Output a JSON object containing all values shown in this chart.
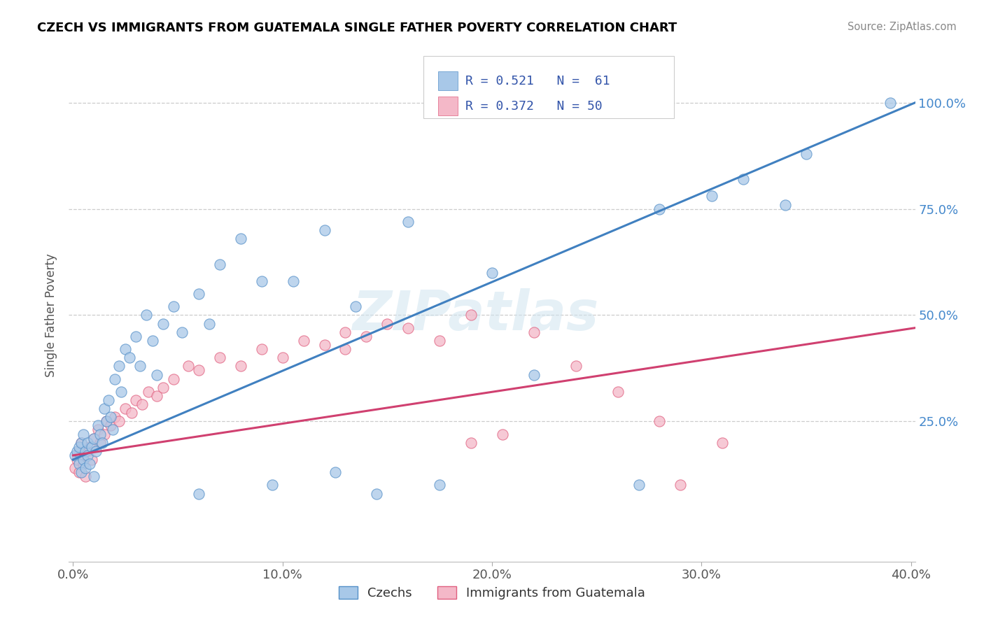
{
  "title": "CZECH VS IMMIGRANTS FROM GUATEMALA SINGLE FATHER POVERTY CORRELATION CHART",
  "source": "Source: ZipAtlas.com",
  "ylabel": "Single Father Poverty",
  "xlim": [
    -0.002,
    0.402
  ],
  "ylim": [
    -0.08,
    1.08
  ],
  "xtick_labels": [
    "0.0%",
    "10.0%",
    "20.0%",
    "30.0%",
    "40.0%"
  ],
  "xtick_vals": [
    0.0,
    0.1,
    0.2,
    0.3,
    0.4
  ],
  "ytick_labels": [
    "25.0%",
    "50.0%",
    "75.0%",
    "100.0%"
  ],
  "ytick_vals": [
    0.25,
    0.5,
    0.75,
    1.0
  ],
  "blue_color": "#a8c8e8",
  "pink_color": "#f4b8c8",
  "blue_edge_color": "#5590c8",
  "pink_edge_color": "#e06080",
  "blue_line_color": "#4080c0",
  "pink_line_color": "#d04070",
  "legend_text_color": "#3355aa",
  "legend_blue_label": "R = 0.521   N =  61",
  "legend_pink_label": "R = 0.372   N = 50",
  "watermark": "ZIPatlas",
  "blue_scatter_x": [
    0.001,
    0.002,
    0.003,
    0.003,
    0.004,
    0.004,
    0.005,
    0.005,
    0.006,
    0.006,
    0.007,
    0.007,
    0.008,
    0.009,
    0.01,
    0.01,
    0.011,
    0.012,
    0.013,
    0.014,
    0.015,
    0.016,
    0.017,
    0.018,
    0.019,
    0.02,
    0.022,
    0.023,
    0.025,
    0.027,
    0.03,
    0.032,
    0.035,
    0.038,
    0.04,
    0.043,
    0.048,
    0.052,
    0.06,
    0.065,
    0.07,
    0.08,
    0.09,
    0.105,
    0.12,
    0.135,
    0.16,
    0.2,
    0.22,
    0.28,
    0.305,
    0.32,
    0.34,
    0.35,
    0.06,
    0.095,
    0.125,
    0.145,
    0.175,
    0.27,
    0.39
  ],
  "blue_scatter_y": [
    0.17,
    0.18,
    0.19,
    0.15,
    0.2,
    0.13,
    0.22,
    0.16,
    0.14,
    0.18,
    0.2,
    0.17,
    0.15,
    0.19,
    0.12,
    0.21,
    0.18,
    0.24,
    0.22,
    0.2,
    0.28,
    0.25,
    0.3,
    0.26,
    0.23,
    0.35,
    0.38,
    0.32,
    0.42,
    0.4,
    0.45,
    0.38,
    0.5,
    0.44,
    0.36,
    0.48,
    0.52,
    0.46,
    0.55,
    0.48,
    0.62,
    0.68,
    0.58,
    0.58,
    0.7,
    0.52,
    0.72,
    0.6,
    0.36,
    0.75,
    0.78,
    0.82,
    0.76,
    0.88,
    0.08,
    0.1,
    0.13,
    0.08,
    0.1,
    0.1,
    1.0
  ],
  "pink_scatter_x": [
    0.001,
    0.002,
    0.003,
    0.003,
    0.004,
    0.005,
    0.005,
    0.006,
    0.007,
    0.008,
    0.009,
    0.01,
    0.012,
    0.013,
    0.015,
    0.016,
    0.018,
    0.02,
    0.022,
    0.025,
    0.028,
    0.03,
    0.033,
    0.036,
    0.04,
    0.043,
    0.048,
    0.055,
    0.06,
    0.07,
    0.08,
    0.09,
    0.1,
    0.11,
    0.12,
    0.13,
    0.14,
    0.15,
    0.16,
    0.175,
    0.19,
    0.205,
    0.22,
    0.24,
    0.26,
    0.28,
    0.19,
    0.13,
    0.31,
    0.29
  ],
  "pink_scatter_y": [
    0.14,
    0.16,
    0.18,
    0.13,
    0.2,
    0.15,
    0.17,
    0.12,
    0.18,
    0.19,
    0.16,
    0.21,
    0.23,
    0.2,
    0.22,
    0.25,
    0.24,
    0.26,
    0.25,
    0.28,
    0.27,
    0.3,
    0.29,
    0.32,
    0.31,
    0.33,
    0.35,
    0.38,
    0.37,
    0.4,
    0.38,
    0.42,
    0.4,
    0.44,
    0.43,
    0.46,
    0.45,
    0.48,
    0.47,
    0.44,
    0.2,
    0.22,
    0.46,
    0.38,
    0.32,
    0.25,
    0.5,
    0.42,
    0.2,
    0.1
  ],
  "blue_trendline_x": [
    0.0,
    0.402
  ],
  "blue_trendline_y": [
    0.16,
    1.0
  ],
  "pink_trendline_x": [
    0.0,
    0.402
  ],
  "pink_trendline_y": [
    0.17,
    0.47
  ]
}
